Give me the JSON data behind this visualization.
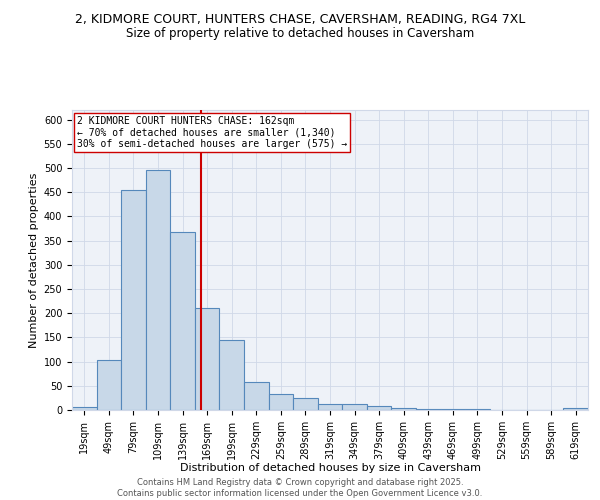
{
  "title_line1": "2, KIDMORE COURT, HUNTERS CHASE, CAVERSHAM, READING, RG4 7XL",
  "title_line2": "Size of property relative to detached houses in Caversham",
  "xlabel": "Distribution of detached houses by size in Caversham",
  "ylabel": "Number of detached properties",
  "bar_color": "#c8d8e8",
  "bar_edge_color": "#5588bb",
  "categories": [
    "19sqm",
    "49sqm",
    "79sqm",
    "109sqm",
    "139sqm",
    "169sqm",
    "199sqm",
    "229sqm",
    "259sqm",
    "289sqm",
    "319sqm",
    "349sqm",
    "379sqm",
    "409sqm",
    "439sqm",
    "469sqm",
    "499sqm",
    "529sqm",
    "559sqm",
    "589sqm",
    "619sqm"
  ],
  "values": [
    7,
    103,
    455,
    497,
    367,
    210,
    145,
    57,
    33,
    25,
    13,
    12,
    8,
    5,
    2,
    2,
    2,
    1,
    0,
    0,
    5
  ],
  "vline_x": 4.77,
  "vline_color": "#cc0000",
  "annotation_text": "2 KIDMORE COURT HUNTERS CHASE: 162sqm\n← 70% of detached houses are smaller (1,340)\n30% of semi-detached houses are larger (575) →",
  "annotation_box_color": "white",
  "annotation_box_edge_color": "#cc0000",
  "ylim": [
    0,
    620
  ],
  "yticks": [
    0,
    50,
    100,
    150,
    200,
    250,
    300,
    350,
    400,
    450,
    500,
    550,
    600
  ],
  "grid_color": "#d0d8e8",
  "bg_color": "#eef2f8",
  "footer_text": "Contains HM Land Registry data © Crown copyright and database right 2025.\nContains public sector information licensed under the Open Government Licence v3.0.",
  "title_fontsize": 9,
  "subtitle_fontsize": 8.5,
  "axis_label_fontsize": 8,
  "tick_fontsize": 7,
  "annotation_fontsize": 7,
  "footer_fontsize": 6
}
